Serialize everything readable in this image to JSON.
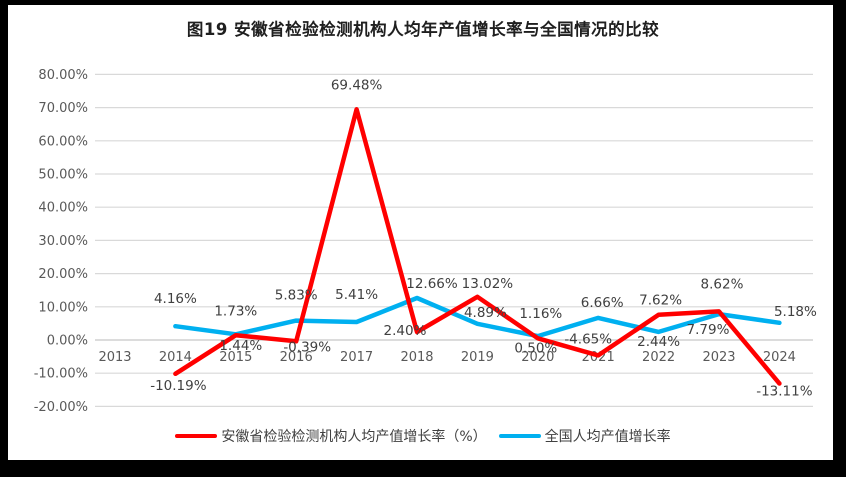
{
  "window": {
    "title": "图19 安徽省检验检测机构人均年产值增长率与全国情况的比较"
  },
  "chart_data": {
    "type": "line",
    "title": "图19 安徽省检验检测机构人均年产值增长率与全国情况的比较",
    "categories": [
      "2013",
      "2014",
      "2015",
      "2016",
      "2017",
      "2018",
      "2019",
      "2020",
      "2021",
      "2022",
      "2023",
      "2024"
    ],
    "series": [
      {
        "name": "安徽省检验检测机构人均产值增长率（%）",
        "color": "#FF0000",
        "values": [
          null,
          -10.19,
          1.44,
          -0.39,
          69.48,
          2.4,
          13.02,
          0.5,
          -4.65,
          7.62,
          8.62,
          -13.11
        ]
      },
      {
        "name": "全国人均产值增长率",
        "color": "#00B0F0",
        "values": [
          null,
          4.16,
          1.73,
          5.83,
          5.41,
          12.66,
          4.89,
          1.16,
          6.66,
          2.44,
          7.79,
          5.18
        ]
      }
    ],
    "xlabel": "",
    "ylabel": "",
    "ylim": [
      -20,
      80
    ],
    "ytick_step": 10,
    "ytick_format": "percent_2dp",
    "yticks": [
      "80.00%",
      "70.00%",
      "60.00%",
      "50.00%",
      "40.00%",
      "30.00%",
      "20.00%",
      "10.00%",
      "0.00%",
      "-10.00%",
      "-20.00%"
    ],
    "grid": true,
    "data_labels": true,
    "legend_position": "bottom"
  },
  "colors": {
    "background": "#ffffff",
    "frame": "#000000",
    "gridline": "#d9d9d9",
    "zero_line": "#c6c6c6",
    "axis_text": "#595959",
    "data_label_text": "#404040",
    "title_text": "#1f1f1f"
  }
}
